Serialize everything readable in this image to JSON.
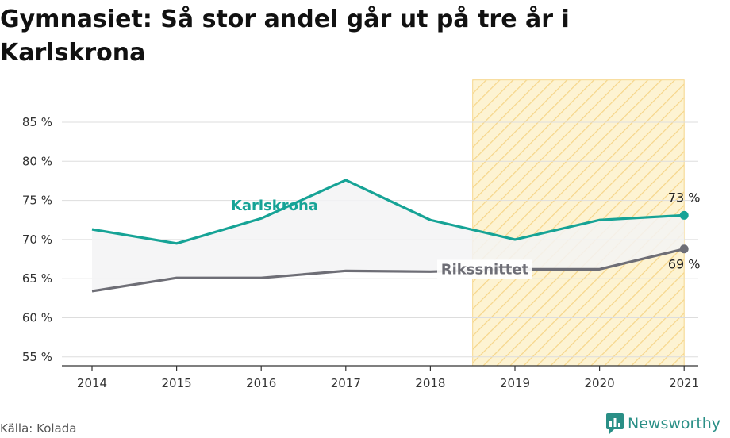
{
  "title": "Gymnasiet: Så stor andel går ut på tre år i Karlskrona",
  "source": "Källa: Kolada",
  "brand": {
    "name": "Newsworthy"
  },
  "colors": {
    "karlskrona": "#16a396",
    "riksnittet": "#6e6e76",
    "band": "#f3f3f5",
    "highlight_fill": "#fdf3d2",
    "highlight_stripe": "#f6d68a",
    "grid": "#dddddd",
    "brand": "#2a8f86"
  },
  "chart_data": {
    "type": "line",
    "title": "Gymnasiet: Så stor andel går ut på tre år i Karlskrona",
    "x": [
      "2014",
      "2015",
      "2016",
      "2017",
      "2018",
      "2019",
      "2020",
      "2021"
    ],
    "series": [
      {
        "name": "Karlskrona",
        "values": [
          71.3,
          69.5,
          72.7,
          77.6,
          72.5,
          70.0,
          72.5,
          73.1
        ]
      },
      {
        "name": "Rikssnittet",
        "values": [
          63.4,
          65.1,
          65.1,
          66.0,
          65.9,
          66.2,
          66.2,
          68.8
        ]
      }
    ],
    "end_labels": [
      "73 %",
      "69 %"
    ],
    "yticks": [
      55,
      60,
      65,
      70,
      75,
      80,
      85
    ],
    "ytick_labels": [
      "55 %",
      "60 %",
      "65 %",
      "70 %",
      "75 %",
      "80 %",
      "85 %"
    ],
    "ylim": [
      54,
      90
    ],
    "highlight_range": [
      "2018",
      "2021"
    ],
    "grid": true,
    "xlabel": "",
    "ylabel": ""
  }
}
